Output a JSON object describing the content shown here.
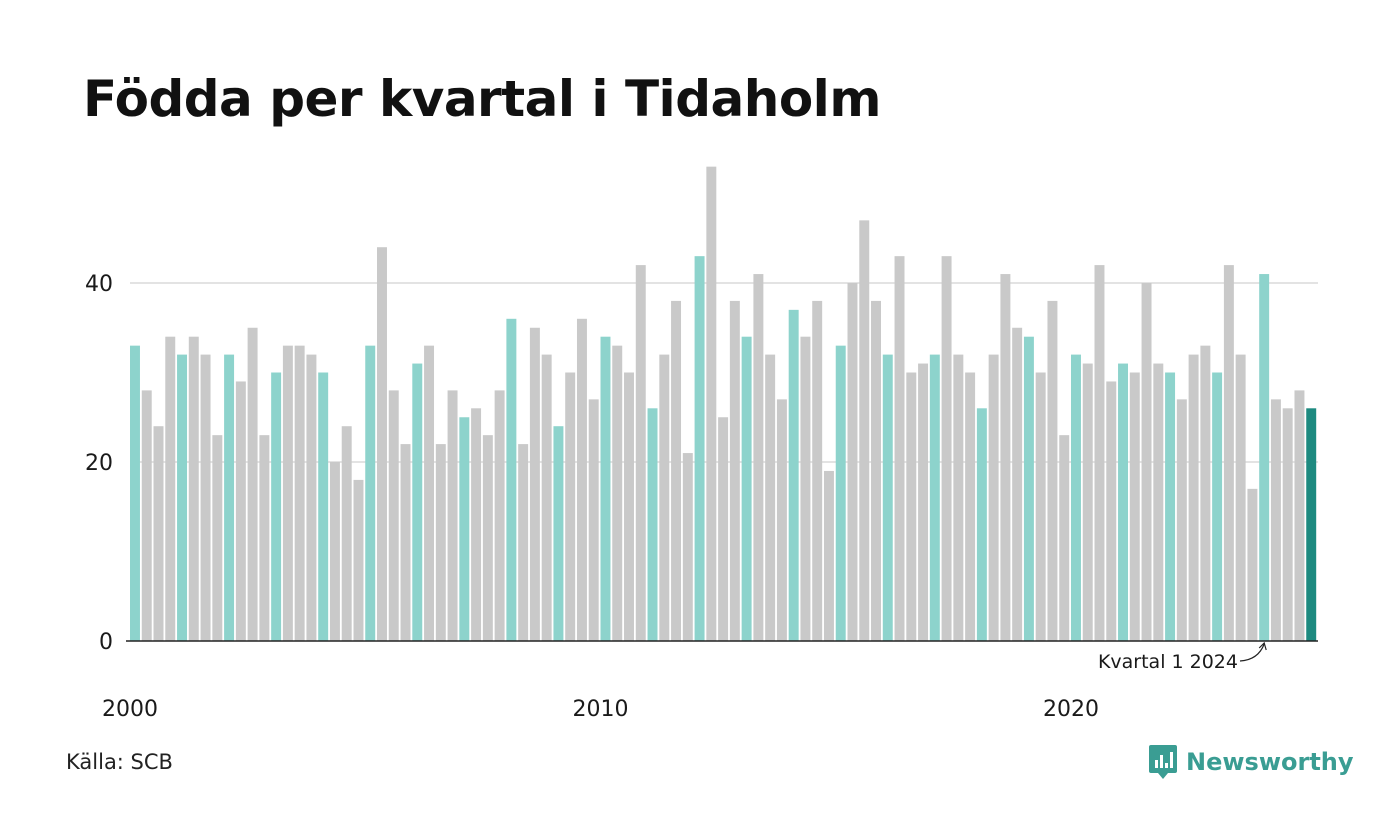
{
  "title": "Födda per kvartal i Tidaholm",
  "source": "Källa: SCB",
  "brand": {
    "name": "Newsworthy",
    "icon": "newsworthy-logo-icon",
    "color": "#3a9d93"
  },
  "annotation": "Kvartal 1 2024",
  "colors": {
    "q1": "#8dd3cc",
    "other": "#c9c9c9",
    "latest": "#1d8a80",
    "grid": "#e3e3e3",
    "axis": "#222222"
  },
  "chart_data": {
    "type": "bar",
    "title": "Födda per kvartal i Tidaholm",
    "xlabel": "",
    "ylabel": "",
    "ylim": [
      0,
      53
    ],
    "y_ticks": [
      0,
      20,
      40
    ],
    "x_ticks": [
      "2000",
      "2010",
      "2020"
    ],
    "grid": true,
    "legend": "none",
    "start_year": 2000,
    "start_quarter": 1,
    "highlight": "Kvartal 1 2024",
    "values": [
      33,
      28,
      24,
      34,
      32,
      34,
      32,
      23,
      32,
      29,
      35,
      23,
      30,
      33,
      33,
      32,
      30,
      20,
      24,
      18,
      33,
      44,
      28,
      22,
      31,
      33,
      22,
      28,
      25,
      26,
      23,
      28,
      36,
      22,
      35,
      32,
      24,
      30,
      36,
      27,
      34,
      33,
      30,
      42,
      26,
      32,
      38,
      21,
      43,
      53,
      25,
      38,
      34,
      41,
      32,
      27,
      37,
      34,
      38,
      19,
      33,
      40,
      47,
      38,
      32,
      43,
      30,
      31,
      32,
      43,
      32,
      30,
      26,
      32,
      41,
      35,
      34,
      30,
      38,
      23,
      32,
      31,
      42,
      29,
      31,
      30,
      40,
      31,
      30,
      27,
      32,
      33,
      30,
      42,
      32,
      17,
      41,
      27,
      26,
      28,
      26
    ]
  }
}
